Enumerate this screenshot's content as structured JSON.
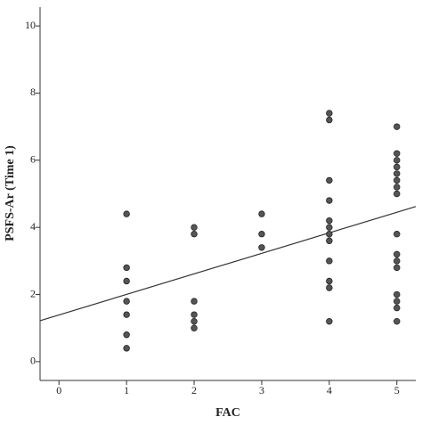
{
  "chart_data": {
    "type": "scatter",
    "x_label": "FAC",
    "y_label": "PSFS-Ar (Time 1)",
    "xlim": [
      -0.28,
      5.28
    ],
    "ylim": [
      -0.56,
      10.56
    ],
    "xticks": [
      0,
      1,
      2,
      3,
      4,
      5
    ],
    "yticks": [
      0,
      2,
      4,
      6,
      8,
      10
    ],
    "grid": false,
    "series": [
      {
        "color": "#555555",
        "x": [
          1,
          1,
          1,
          1,
          1,
          1,
          1,
          2,
          2,
          2,
          2,
          2,
          2,
          3,
          3,
          3,
          4,
          4,
          4,
          4,
          4,
          4,
          4,
          4,
          4,
          4,
          4,
          4,
          5,
          5,
          5,
          5,
          5,
          5,
          5,
          5,
          5,
          5,
          5,
          5,
          5,
          5,
          5,
          5
        ],
        "y": [
          4.4,
          2.8,
          2.4,
          1.8,
          1.4,
          0.8,
          0.4,
          4.0,
          3.8,
          1.8,
          1.4,
          1.2,
          1.0,
          4.4,
          3.8,
          3.4,
          7.4,
          7.2,
          5.4,
          4.8,
          4.2,
          4.0,
          3.8,
          3.6,
          3.0,
          2.4,
          2.2,
          1.2,
          7.0,
          6.2,
          6.0,
          5.8,
          5.6,
          5.4,
          5.2,
          5.0,
          3.8,
          3.2,
          3.0,
          2.8,
          2.0,
          1.8,
          1.6,
          1.2
        ]
      }
    ],
    "trend_line": {
      "color": "#333333",
      "x": [
        -0.28,
        5.28
      ],
      "y": [
        1.22,
        4.62
      ]
    }
  }
}
